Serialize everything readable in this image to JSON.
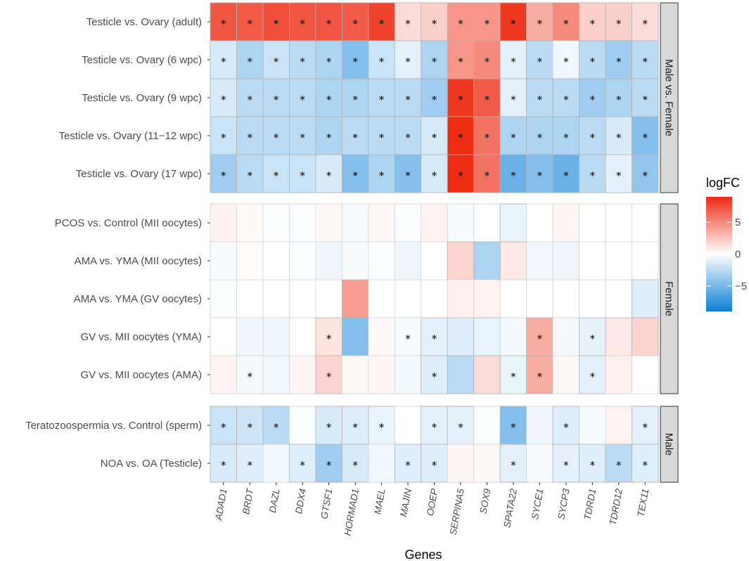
{
  "chart_data": {
    "type": "heatmap",
    "xlabel": "Genes",
    "genes": [
      "ADAD1",
      "BRDT",
      "DAZL",
      "DDX4",
      "GTSF1",
      "HORMAD1",
      "MAEL",
      "MAJIN",
      "OOEP",
      "SERPINA5",
      "SOX9",
      "SPATA22",
      "SYCE1",
      "SYCP3",
      "TDRD1",
      "TDRD12",
      "TEX11"
    ],
    "legend": {
      "title": "logFC",
      "range": [
        -9,
        9
      ],
      "ticks": [
        5,
        0,
        -5
      ],
      "colors": {
        "low": "#0a7fd6",
        "mid": "#ffffff",
        "high": "#ee2c13"
      }
    },
    "panels": [
      {
        "strip": "Male vs. Female",
        "rows": [
          {
            "label": "Testicle vs. Ovary (adult)",
            "values": [
              7.2,
              7.0,
              7.5,
              7.2,
              7.3,
              7.0,
              8.0,
              1.5,
              2.0,
              4.5,
              4.5,
              8.5,
              3.5,
              5.0,
              2.0,
              2.0,
              1.5
            ],
            "sig": [
              1,
              1,
              1,
              1,
              1,
              1,
              1,
              1,
              1,
              1,
              1,
              1,
              1,
              1,
              1,
              1,
              1
            ]
          },
          {
            "label": "Testicle vs. Ovary (6 wpc)",
            "values": [
              -1.5,
              -3.0,
              -2.0,
              -2.5,
              -3.0,
              -4.5,
              -2.0,
              -1.0,
              -3.0,
              4.5,
              5.0,
              -1.0,
              -2.5,
              -0.5,
              -2.5,
              -3.5,
              -2.5
            ],
            "sig": [
              1,
              1,
              1,
              1,
              1,
              1,
              1,
              1,
              1,
              1,
              1,
              1,
              1,
              1,
              1,
              1,
              1
            ]
          },
          {
            "label": "Testicle vs. Ovary (9 wpc)",
            "values": [
              -1.5,
              -2.5,
              -2.5,
              -2.5,
              -3.0,
              -3.0,
              -2.5,
              -2.5,
              -3.5,
              8.5,
              7.0,
              -1.0,
              -2.5,
              -2.5,
              -3.5,
              -3.0,
              -2.5
            ],
            "sig": [
              1,
              1,
              1,
              1,
              1,
              1,
              1,
              1,
              1,
              1,
              1,
              1,
              1,
              1,
              1,
              1,
              1
            ]
          },
          {
            "label": "Testicle vs. Ovary (11−12 wpc)",
            "values": [
              -2.0,
              -2.5,
              -2.5,
              -2.5,
              -3.0,
              -2.5,
              -2.5,
              -2.5,
              -1.5,
              9.0,
              6.0,
              -3.0,
              -3.0,
              -3.0,
              -2.5,
              -1.5,
              -4.5
            ],
            "sig": [
              1,
              1,
              1,
              1,
              1,
              1,
              1,
              1,
              1,
              1,
              1,
              1,
              1,
              1,
              1,
              1,
              1
            ]
          },
          {
            "label": "Testicle vs. Ovary (17 wpc)",
            "values": [
              -3.5,
              -2.5,
              -2.0,
              -2.0,
              -1.5,
              -4.5,
              -3.0,
              -4.5,
              -1.5,
              9.0,
              6.0,
              -5.5,
              -4.5,
              -5.5,
              -2.5,
              -1.0,
              -4.0
            ],
            "sig": [
              1,
              1,
              1,
              1,
              1,
              1,
              1,
              1,
              1,
              1,
              1,
              1,
              1,
              1,
              1,
              1,
              1
            ]
          }
        ]
      },
      {
        "strip": "Female",
        "rows": [
          {
            "label": "PCOS vs. Control (MII oocytes)",
            "values": [
              0.6,
              0.2,
              -0.2,
              -0.2,
              0.3,
              -0.3,
              0.3,
              -0.2,
              0.5,
              -0.3,
              0.0,
              -0.8,
              0.0,
              0.4,
              0.0,
              0.0,
              0.0
            ],
            "sig": [
              0,
              0,
              0,
              0,
              0,
              0,
              0,
              0,
              0,
              0,
              0,
              0,
              0,
              0,
              0,
              0,
              0
            ]
          },
          {
            "label": "AMA vs. YMA (MII oocytes)",
            "values": [
              -0.3,
              0.1,
              0.0,
              -0.2,
              -0.6,
              -0.3,
              -0.2,
              -0.6,
              0.0,
              1.8,
              -3.0,
              0.9,
              -0.5,
              -0.6,
              0.0,
              0.0,
              0.0
            ],
            "sig": [
              0,
              0,
              0,
              0,
              0,
              0,
              0,
              0,
              0,
              0,
              0,
              0,
              0,
              0,
              0,
              0,
              0
            ]
          },
          {
            "label": "AMA vs. YMA (GV oocytes)",
            "values": [
              -0.2,
              0.0,
              0.0,
              0.0,
              0.0,
              4.2,
              0.0,
              0.0,
              0.0,
              0.6,
              0.5,
              0.0,
              0.0,
              0.0,
              0.0,
              0.0,
              -1.2
            ],
            "sig": [
              0,
              0,
              0,
              0,
              0,
              0,
              0,
              0,
              0,
              0,
              0,
              0,
              0,
              0,
              0,
              0,
              0
            ]
          },
          {
            "label": "GV vs. MII oocytes (YMA)",
            "values": [
              0.0,
              -0.6,
              -0.6,
              0.0,
              1.2,
              -4.5,
              0.2,
              -0.3,
              -1.0,
              -1.2,
              -0.8,
              -0.4,
              3.5,
              -0.4,
              -0.9,
              0.9,
              1.8
            ],
            "sig": [
              0,
              0,
              0,
              0,
              1,
              0,
              0,
              1,
              1,
              0,
              0,
              0,
              1,
              0,
              1,
              0,
              0
            ]
          },
          {
            "label": "GV vs. MII oocytes (AMA)",
            "values": [
              0.5,
              -0.4,
              -0.5,
              0.4,
              1.8,
              0.3,
              0.4,
              -0.4,
              -1.2,
              -2.5,
              1.5,
              -0.8,
              3.5,
              0.3,
              -1.0,
              0.6,
              0.0
            ],
            "sig": [
              0,
              1,
              0,
              0,
              1,
              0,
              0,
              0,
              1,
              0,
              0,
              1,
              1,
              0,
              1,
              0,
              0
            ]
          }
        ]
      },
      {
        "strip": "Male",
        "rows": [
          {
            "label": "Teratozoospermia vs. Control (sperm)",
            "values": [
              -2.0,
              -1.8,
              -2.5,
              -0.2,
              -1.5,
              -1.2,
              -0.8,
              0.0,
              -1.0,
              -1.0,
              -0.2,
              -4.5,
              -0.6,
              -1.2,
              -0.3,
              0.5,
              -1.0
            ],
            "sig": [
              1,
              1,
              1,
              0,
              1,
              1,
              1,
              0,
              1,
              1,
              0,
              1,
              0,
              1,
              0,
              0,
              1
            ]
          },
          {
            "label": "NOA vs. OA (Testicle)",
            "values": [
              -1.5,
              -1.2,
              -0.5,
              -1.2,
              -3.5,
              -1.5,
              -0.5,
              -1.2,
              -1.2,
              0.4,
              0.3,
              -1.0,
              -0.3,
              -1.0,
              -1.2,
              -2.5,
              -1.2
            ],
            "sig": [
              1,
              1,
              0,
              1,
              1,
              1,
              0,
              1,
              1,
              0,
              0,
              1,
              0,
              1,
              1,
              1,
              1
            ]
          }
        ]
      }
    ]
  }
}
